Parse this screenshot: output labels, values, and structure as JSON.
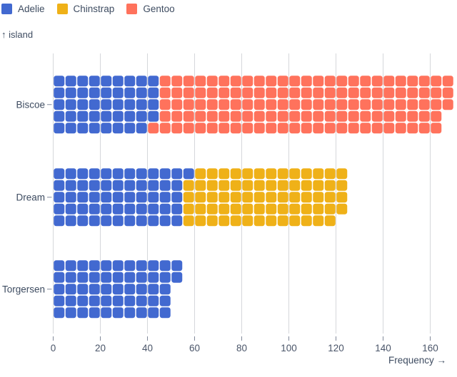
{
  "figure": {
    "legend": {
      "items": [
        {
          "label": "Adelie",
          "color": "#4269d0"
        },
        {
          "label": "Chinstrap",
          "color": "#efb118"
        },
        {
          "label": "Gentoo",
          "color": "#ff725c"
        }
      ]
    },
    "y_axis_title": "↑ island",
    "x_axis_title": "Frequency →"
  },
  "chart_data": {
    "type": "bar",
    "subtype": "waffle",
    "orientation": "horizontal",
    "title": "",
    "xlabel": "Frequency →",
    "ylabel": "↑ island",
    "unit_value": 1,
    "cells_per_column": 5,
    "grid": true,
    "legend_position": "top-left",
    "categories": [
      "Biscoe",
      "Dream",
      "Torgersen"
    ],
    "series": [
      {
        "name": "Adelie",
        "color": "#4269d0",
        "values": [
          44,
          56,
          52
        ]
      },
      {
        "name": "Chinstrap",
        "color": "#efb118",
        "values": [
          0,
          68,
          0
        ]
      },
      {
        "name": "Gentoo",
        "color": "#ff725c",
        "values": [
          124,
          0,
          0
        ]
      }
    ],
    "totals": [
      168,
      124,
      52
    ],
    "x_ticks": [
      0,
      20,
      40,
      60,
      80,
      100,
      120,
      140,
      160
    ],
    "xlim": [
      0,
      170
    ]
  }
}
